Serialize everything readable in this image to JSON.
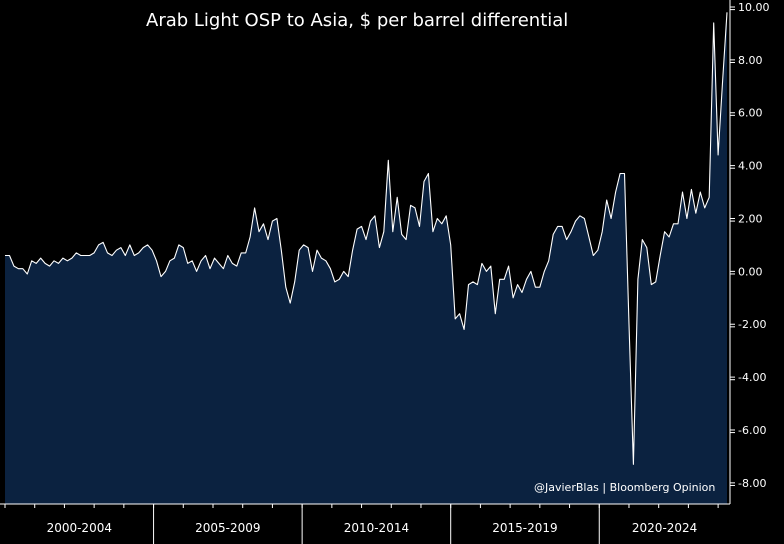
{
  "chart_data": {
    "type": "area",
    "title": "Arab Light OSP to Asia, $ per barrel differential",
    "credit": "@JavierBlas | Bloomberg Opinion",
    "xlabel": "",
    "ylabel": "",
    "ylim": [
      -8.8,
      10.0
    ],
    "yticks": [
      10,
      8,
      6,
      4,
      2,
      0,
      -2,
      -4,
      -6,
      -8
    ],
    "ytick_labels": [
      "10.00",
      "8.00",
      "6.00",
      "4.00",
      "2.00",
      "0.00",
      "-2.00",
      "-4.00",
      "-6.00",
      "-8.00"
    ],
    "x_periods": [
      "2000-2004",
      "2005-2009",
      "2010-2014",
      "2015-2019",
      "2020-2024"
    ],
    "x_start": 2000.0,
    "x_end": 2024.4,
    "grid": false,
    "colors": {
      "background": "#000000",
      "area_fill": "#0b2240",
      "line": "#ffffff",
      "axis": "#ffffff",
      "text": "#ffffff"
    },
    "series": [
      {
        "x": [
          2000.0,
          2000.15,
          2000.3,
          2000.45,
          2000.6,
          2000.75,
          2000.9,
          2001.05,
          2001.2,
          2001.35,
          2001.5,
          2001.65,
          2001.8,
          2001.95,
          2002.1,
          2002.25,
          2002.4,
          2002.55,
          2002.7,
          2002.85,
          2003.0,
          2003.15,
          2003.3,
          2003.45,
          2003.6,
          2003.75,
          2003.9,
          2004.05,
          2004.2,
          2004.35,
          2004.5,
          2004.65,
          2004.8,
          2004.95,
          2005.1,
          2005.25,
          2005.4,
          2005.55,
          2005.7,
          2005.85,
          2006.0,
          2006.15,
          2006.3,
          2006.45,
          2006.6,
          2006.75,
          2006.9,
          2007.05,
          2007.2,
          2007.35,
          2007.5,
          2007.65,
          2007.8,
          2007.95,
          2008.1,
          2008.25,
          2008.4,
          2008.55,
          2008.7,
          2008.85,
          2009.0,
          2009.15,
          2009.3,
          2009.45,
          2009.6,
          2009.75,
          2009.9,
          2010.05,
          2010.2,
          2010.35,
          2010.5,
          2010.65,
          2010.8,
          2010.95,
          2011.1,
          2011.25,
          2011.4,
          2011.55,
          2011.7,
          2011.85,
          2012.0,
          2012.15,
          2012.3,
          2012.45,
          2012.6,
          2012.75,
          2012.9,
          2013.05,
          2013.2,
          2013.35,
          2013.5,
          2013.65,
          2013.8,
          2013.95,
          2014.1,
          2014.25,
          2014.4,
          2014.55,
          2014.7,
          2014.85,
          2015.0,
          2015.15,
          2015.3,
          2015.45,
          2015.6,
          2015.75,
          2015.9,
          2016.05,
          2016.2,
          2016.35,
          2016.5,
          2016.65,
          2016.8,
          2016.95,
          2017.1,
          2017.25,
          2017.4,
          2017.55,
          2017.7,
          2017.85,
          2018.0,
          2018.15,
          2018.3,
          2018.45,
          2018.6,
          2018.75,
          2018.9,
          2019.05,
          2019.2,
          2019.35,
          2019.5,
          2019.65,
          2019.8,
          2019.95,
          2020.1,
          2020.25,
          2020.4,
          2020.55,
          2020.7,
          2020.85,
          2021.0,
          2021.15,
          2021.3,
          2021.45,
          2021.6,
          2021.75,
          2021.9,
          2022.05,
          2022.2,
          2022.35,
          2022.5,
          2022.65,
          2022.8,
          2022.95,
          2023.1,
          2023.25,
          2023.4,
          2023.55,
          2023.7,
          2023.85,
          2024.0,
          2024.15,
          2024.3
        ],
        "values": [
          0.6,
          0.6,
          0.2,
          0.1,
          0.1,
          -0.1,
          0.4,
          0.3,
          0.5,
          0.3,
          0.2,
          0.4,
          0.3,
          0.5,
          0.4,
          0.5,
          0.7,
          0.6,
          0.6,
          0.6,
          0.7,
          1.0,
          1.1,
          0.7,
          0.6,
          0.8,
          0.9,
          0.6,
          1.0,
          0.6,
          0.7,
          0.9,
          1.0,
          0.8,
          0.4,
          -0.2,
          0.0,
          0.4,
          0.5,
          1.0,
          0.9,
          0.3,
          0.4,
          0.0,
          0.4,
          0.6,
          0.1,
          0.5,
          0.3,
          0.1,
          0.6,
          0.3,
          0.2,
          0.7,
          0.7,
          1.3,
          2.4,
          1.5,
          1.8,
          1.2,
          1.9,
          2.0,
          0.8,
          -0.6,
          -1.2,
          -0.4,
          0.8,
          1.0,
          0.9,
          0.0,
          0.8,
          0.5,
          0.4,
          0.1,
          -0.4,
          -0.3,
          0.0,
          -0.2,
          0.8,
          1.6,
          1.7,
          1.2,
          1.9,
          2.1,
          0.9,
          1.5,
          4.2,
          1.5,
          2.8,
          1.4,
          1.2,
          2.5,
          2.4,
          1.7,
          3.4,
          3.7,
          1.5,
          2.0,
          1.8,
          2.1,
          1.0,
          -1.8,
          -1.6,
          -2.2,
          -0.5,
          -0.4,
          -0.5,
          0.3,
          0.0,
          0.2,
          -1.6,
          -0.3,
          -0.3,
          0.2,
          -1.0,
          -0.5,
          -0.8,
          -0.3,
          0.0,
          -0.6,
          -0.6,
          0.0,
          0.4,
          1.4,
          1.7,
          1.7,
          1.2,
          1.5,
          1.9,
          2.1,
          2.0,
          1.3,
          0.6,
          0.8,
          1.5,
          2.7,
          2.0,
          3.0,
          3.7,
          3.7,
          -2.0,
          -7.3,
          -0.3,
          1.2,
          0.9,
          -0.5,
          -0.4,
          0.6,
          1.5,
          1.3,
          1.8,
          1.8,
          3.0,
          2.0,
          3.1,
          2.2,
          3.0,
          2.4,
          2.8,
          9.4,
          4.4,
          7.2,
          9.8
        ]
      }
    ]
  }
}
